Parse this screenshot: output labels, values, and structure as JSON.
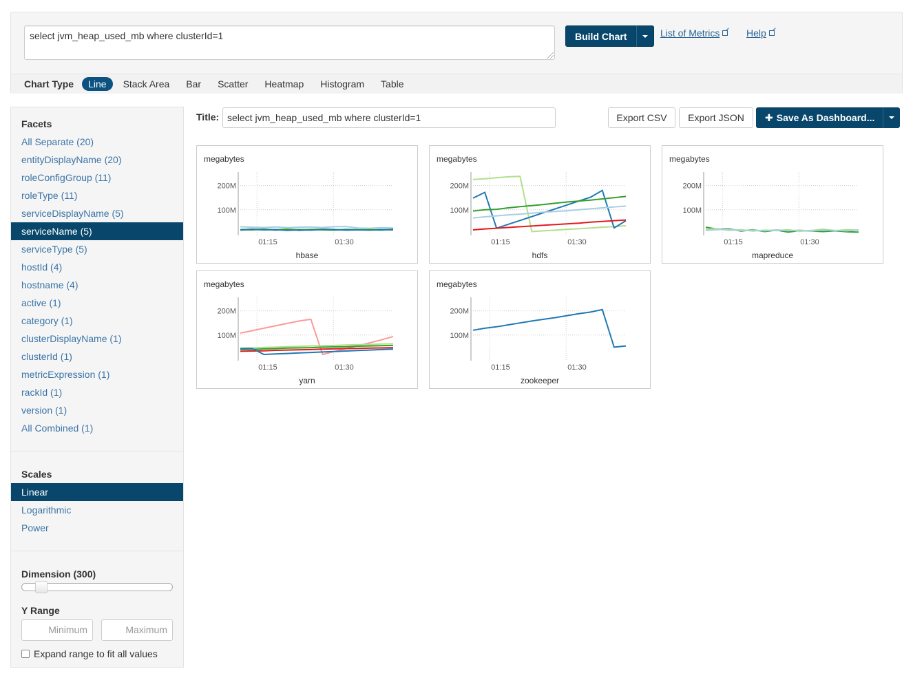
{
  "query": {
    "text": "select jvm_heap_used_mb where clusterId=1",
    "build_label": "Build Chart",
    "links": [
      "List of Metrics",
      "Help"
    ]
  },
  "chart_types": {
    "label": "Chart Type",
    "items": [
      "Line",
      "Stack Area",
      "Bar",
      "Scatter",
      "Heatmap",
      "Histogram",
      "Table"
    ],
    "active": "Line"
  },
  "facets": {
    "heading": "Facets",
    "items": [
      "All Separate (20)",
      "entityDisplayName (20)",
      "roleConfigGroup (11)",
      "roleType (11)",
      "serviceDisplayName (5)",
      "serviceName (5)",
      "serviceType (5)",
      "hostId (4)",
      "hostname (4)",
      "active (1)",
      "category (1)",
      "clusterDisplayName (1)",
      "clusterId (1)",
      "metricExpression (1)",
      "rackId (1)",
      "version (1)",
      "All Combined (1)"
    ],
    "active": "serviceName (5)"
  },
  "scales": {
    "heading": "Scales",
    "items": [
      "Linear",
      "Logarithmic",
      "Power"
    ],
    "active": "Linear"
  },
  "dimension": {
    "label": "Dimension (300)",
    "value": 300
  },
  "y_range": {
    "label": "Y Range",
    "min_placeholder": "Minimum",
    "max_placeholder": "Maximum",
    "expand_label": "Expand range to fit all values",
    "expand_checked": false
  },
  "title_row": {
    "label": "Title:",
    "value": "select jvm_heap_used_mb where clusterId=1",
    "export_csv": "Export CSV",
    "export_json": "Export JSON",
    "save_label": "Save As Dashboard..."
  },
  "colors": {
    "accent": "#08476b",
    "link": "#3b74a6"
  },
  "chart_data": [
    {
      "type": "line",
      "title": "hbase",
      "ylabel": "megabytes",
      "yticks": [
        "100M",
        "200M"
      ],
      "xticks": [
        "01:15",
        "01:30"
      ],
      "ylim": [
        0,
        250
      ],
      "series": [
        {
          "color": "#a6cee3",
          "values": [
            30,
            28,
            27,
            29,
            26,
            28,
            29,
            27,
            30,
            31,
            25,
            24,
            26,
            25
          ]
        },
        {
          "color": "#b2df8a",
          "values": [
            20,
            22,
            21,
            19,
            22,
            20,
            21,
            23,
            20,
            18,
            21,
            22,
            20,
            19
          ]
        },
        {
          "color": "#33a02c",
          "values": [
            18,
            17,
            20,
            16,
            19,
            15,
            18,
            17,
            16,
            19,
            17,
            18,
            16,
            20
          ]
        },
        {
          "color": "#1f78b4",
          "values": [
            16,
            19,
            17,
            18,
            15,
            17,
            16,
            19,
            18,
            16,
            17,
            16,
            18,
            17
          ]
        }
      ]
    },
    {
      "type": "line",
      "title": "hdfs",
      "ylabel": "megabytes",
      "yticks": [
        "100M",
        "200M"
      ],
      "xticks": [
        "01:15",
        "01:30"
      ],
      "ylim": [
        0,
        250
      ],
      "series": [
        {
          "color": "#b2df8a",
          "values": [
            225,
            228,
            232,
            236,
            238,
            10,
            13,
            16,
            19,
            22,
            25,
            28,
            31,
            34
          ]
        },
        {
          "color": "#1f78b4",
          "values": [
            148,
            172,
            24,
            40,
            56,
            72,
            88,
            104,
            120,
            136,
            152,
            180,
            25,
            55
          ]
        },
        {
          "color": "#33a02c",
          "values": [
            95,
            100,
            102,
            108,
            113,
            117,
            122,
            127,
            132,
            136,
            140,
            145,
            150,
            155
          ]
        },
        {
          "color": "#a6cee3",
          "values": [
            66,
            71,
            75,
            79,
            82,
            86,
            90,
            93,
            96,
            100,
            104,
            108,
            112,
            115
          ]
        },
        {
          "color": "#e31a1c",
          "values": [
            17,
            21,
            24,
            27,
            30,
            33,
            36,
            39,
            42,
            45,
            49,
            52,
            55,
            58
          ]
        }
      ]
    },
    {
      "type": "line",
      "title": "mapreduce",
      "ylabel": "megabytes",
      "yticks": [
        "100M",
        "200M"
      ],
      "xticks": [
        "01:15",
        "01:30"
      ],
      "ylim": [
        0,
        250
      ],
      "series": [
        {
          "color": "#33a02c",
          "values": [
            28,
            20,
            22,
            12,
            18,
            10,
            16,
            8,
            14,
            12,
            10,
            13,
            9,
            8
          ]
        },
        {
          "color": "#b2df8a",
          "values": [
            20,
            22,
            15,
            18,
            12,
            16,
            14,
            18,
            11,
            15,
            20,
            14,
            18,
            16
          ]
        },
        {
          "color": "#a6cee3",
          "values": [
            15,
            18,
            20,
            14,
            16,
            13,
            17,
            14,
            16,
            12,
            17,
            15,
            13,
            17
          ]
        }
      ]
    },
    {
      "type": "line",
      "title": "yarn",
      "ylabel": "megabytes",
      "yticks": [
        "100M",
        "200M"
      ],
      "xticks": [
        "01:15",
        "01:30"
      ],
      "ylim": [
        0,
        250
      ],
      "series": [
        {
          "color": "#fb9a99",
          "values": [
            108,
            118,
            128,
            138,
            148,
            158,
            165,
            20,
            32,
            44,
            56,
            68,
            80,
            94
          ]
        },
        {
          "color": "#b2df8a",
          "values": [
            46,
            47,
            49,
            50,
            52,
            53,
            55,
            56,
            57,
            59,
            60,
            61,
            63,
            64
          ]
        },
        {
          "color": "#33a02c",
          "values": [
            40,
            41,
            43,
            44,
            46,
            47,
            48,
            50,
            51,
            52,
            54,
            55,
            56,
            57
          ]
        },
        {
          "color": "#e31a1c",
          "values": [
            33,
            34,
            35,
            37,
            38,
            39,
            40,
            42,
            43,
            44,
            45,
            46,
            47,
            48
          ]
        },
        {
          "color": "#1f78b4",
          "values": [
            44,
            45,
            20,
            22,
            24,
            26,
            28,
            30,
            32,
            34,
            36,
            38,
            40,
            42
          ]
        }
      ]
    },
    {
      "type": "line",
      "title": "zookeeper",
      "ylabel": "megabytes",
      "yticks": [
        "100M",
        "200M"
      ],
      "xticks": [
        "01:15",
        "01:30"
      ],
      "ylim": [
        0,
        250
      ],
      "series": [
        {
          "color": "#1f78b4",
          "values": [
            120,
            128,
            134,
            142,
            150,
            158,
            165,
            172,
            180,
            188,
            195,
            205,
            50,
            55
          ]
        }
      ]
    }
  ]
}
